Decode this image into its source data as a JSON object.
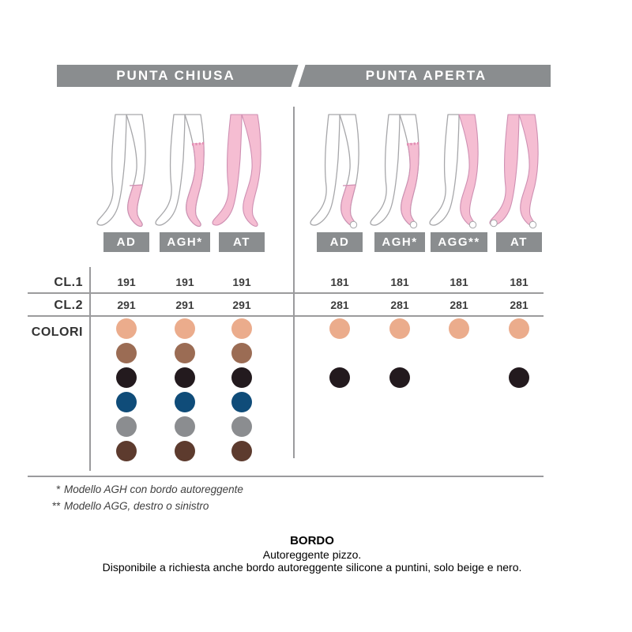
{
  "header": {
    "left_tab": "PUNTA CHIUSA",
    "right_tab": "PUNTA APERTA",
    "bar_color": "#8A8D8F",
    "text_color": "#FFFFFF"
  },
  "table": {
    "row_labels": {
      "cl1": "CL.1",
      "cl2": "CL.2",
      "colors": "COLORI"
    }
  },
  "groups": [
    {
      "id": "closed",
      "toe": "closed",
      "models": [
        {
          "label": "AD",
          "cover": "ad"
        },
        {
          "label": "AGH*",
          "cover": "agh"
        },
        {
          "label": "AT",
          "cover": "at"
        }
      ],
      "cl1_codes": [
        "191",
        "191",
        "191"
      ],
      "cl2_codes": [
        "291",
        "291",
        "291"
      ],
      "dot_matrix": [
        [
          1,
          1,
          1,
          1,
          1,
          1
        ],
        [
          1,
          1,
          1,
          1,
          1,
          1
        ],
        [
          1,
          1,
          1,
          1,
          1,
          1
        ]
      ]
    },
    {
      "id": "open",
      "toe": "open",
      "models": [
        {
          "label": "AD",
          "cover": "ad"
        },
        {
          "label": "AGH*",
          "cover": "agh"
        },
        {
          "label": "AGG**",
          "cover": "agg"
        },
        {
          "label": "AT",
          "cover": "at"
        }
      ],
      "cl1_codes": [
        "181",
        "181",
        "181",
        "181"
      ],
      "cl2_codes": [
        "281",
        "281",
        "281",
        "281"
      ],
      "dot_matrix": [
        [
          1,
          0,
          1,
          0,
          0,
          0
        ],
        [
          1,
          0,
          1,
          0,
          0,
          0
        ],
        [
          1,
          0,
          0,
          0,
          0,
          0
        ],
        [
          1,
          0,
          1,
          0,
          0,
          0
        ]
      ]
    }
  ],
  "color_palette": [
    {
      "name": "beige",
      "hex": "#EBAC8C"
    },
    {
      "name": "brown",
      "hex": "#9B6C54"
    },
    {
      "name": "black",
      "hex": "#231A1E"
    },
    {
      "name": "navy-blue",
      "hex": "#0F4C79"
    },
    {
      "name": "gray",
      "hex": "#8B8D90"
    },
    {
      "name": "dark-brown",
      "hex": "#5D3B2E"
    }
  ],
  "footnotes": [
    {
      "mark": "*",
      "text": "Modello AGH con bordo autoreggente"
    },
    {
      "mark": "**",
      "text": "Modello AGG, destro o sinistro"
    }
  ],
  "bordo": {
    "title": "BORDO",
    "line1": "Autoreggente pizzo.",
    "line2": "Disponibile a richiesta anche bordo autoreggente silicone a puntini, solo beige e nero."
  },
  "illustration": {
    "pink": "#F5BDD2",
    "pink_outline": "#CE8FB2",
    "lace_band": "#E08CB2",
    "outline": "#A7A7AA",
    "label_bg": "#8A8D8F"
  }
}
